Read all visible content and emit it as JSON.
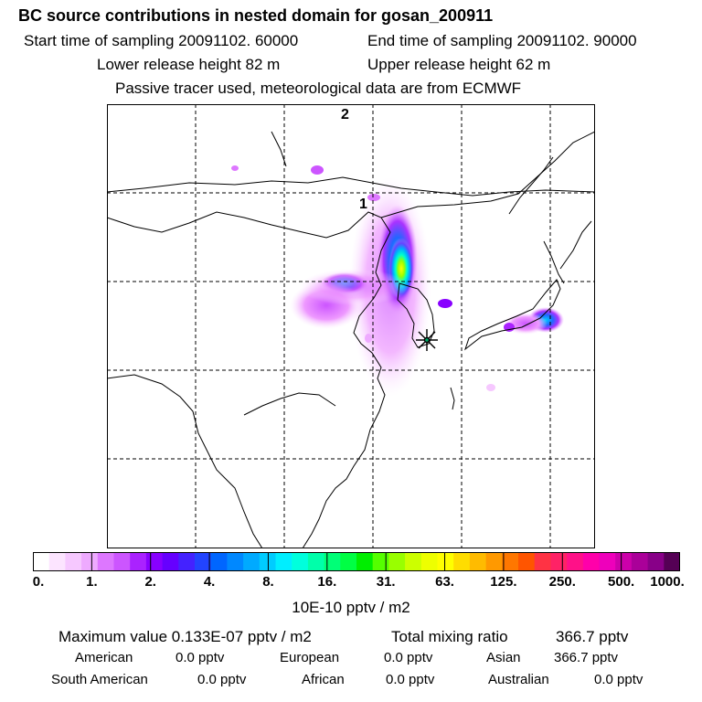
{
  "title": "BC  source contributions in nested domain for gosan_200911",
  "header": {
    "start_label": "Start time of sampling 20091102. 60000",
    "end_label": "End time of sampling 20091102. 90000",
    "lower_label": "Lower release height   82 m",
    "upper_label": "Upper release height   62 m",
    "note": "Passive tracer used, meteorological data are from ECMWF"
  },
  "map": {
    "markers": [
      {
        "label": "2",
        "lon": 117.5,
        "lat": 54.5
      },
      {
        "label": "1",
        "lon": 118.5,
        "lat": 46.0
      }
    ],
    "receptor": {
      "name": "star-receptor",
      "lon": 126.2,
      "lat": 33.3
    },
    "grid_lons": [
      100,
      110,
      120,
      130,
      140
    ],
    "grid_lats": [
      20,
      30,
      40,
      50
    ],
    "extent": {
      "lon": [
        90,
        145
      ],
      "lat": [
        15,
        55
      ]
    }
  },
  "colorbar": {
    "ticks": [
      "0.",
      "1.",
      "2.",
      "4.",
      "8.",
      "16.",
      "31.",
      "63.",
      "125.",
      "250.",
      "500.",
      "1000."
    ],
    "colors": [
      "#ffffff",
      "#fce4ff",
      "#f6c8ff",
      "#eeaaff",
      "#dd77ff",
      "#cc55ff",
      "#aa22ff",
      "#8800ff",
      "#6600ff",
      "#4422ff",
      "#2244ff",
      "#0066ff",
      "#0088ff",
      "#00aaff",
      "#00ccff",
      "#00eeff",
      "#00ffdd",
      "#00ffaa",
      "#00ff77",
      "#00ff44",
      "#00ee00",
      "#55ff00",
      "#99ff00",
      "#ccff00",
      "#eeff00",
      "#ffff00",
      "#ffdd00",
      "#ffbb00",
      "#ff9900",
      "#ff7700",
      "#ff5500",
      "#ff3344",
      "#ff2266",
      "#ff1188",
      "#ff00aa",
      "#ee00bb",
      "#cc00aa",
      "#aa0099",
      "#880088",
      "#550055"
    ],
    "unit": "10E-10 pptv / m2"
  },
  "summary": {
    "max_label": "Maximum value  0.133E-07 pptv / m2",
    "total_label": "Total mixing ratio",
    "total_value": "366.7 pptv",
    "regions_row1": [
      {
        "name": "American",
        "value": "0.0 pptv"
      },
      {
        "name": "European",
        "value": "0.0 pptv"
      },
      {
        "name": "Asian",
        "value": "366.7 pptv"
      }
    ],
    "regions_row2": [
      {
        "name": "South American",
        "value": "0.0 pptv"
      },
      {
        "name": "African",
        "value": "0.0 pptv"
      },
      {
        "name": "Australian",
        "value": "0.0 pptv"
      }
    ]
  }
}
